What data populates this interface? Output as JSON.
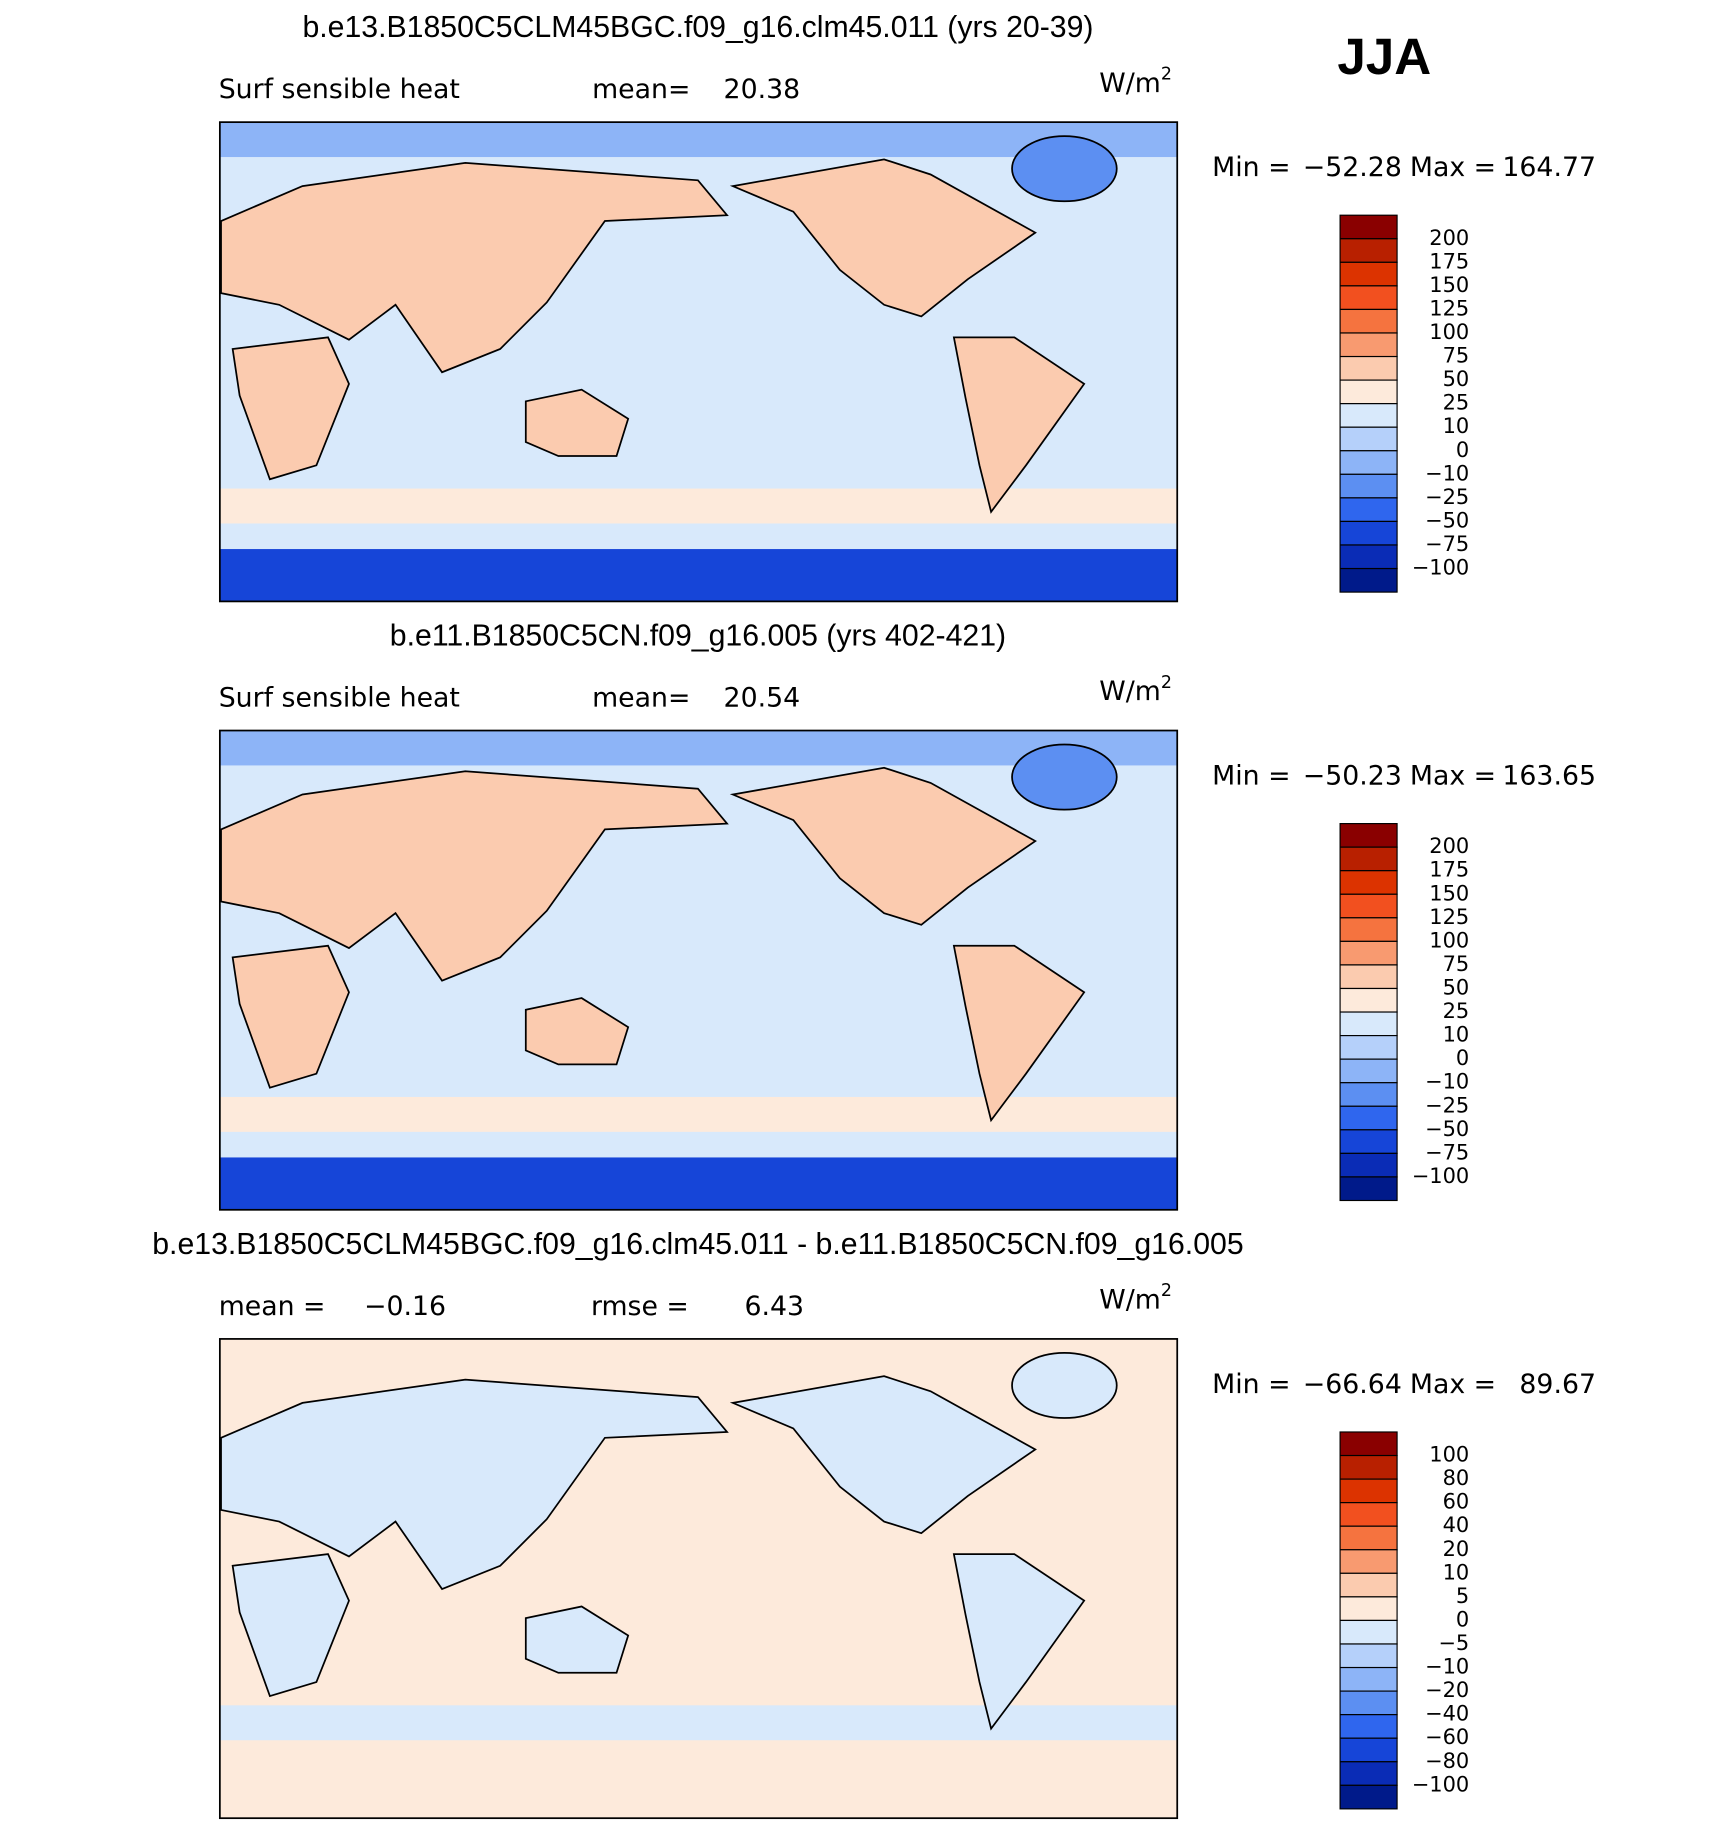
{
  "season": "JJA",
  "panels": [
    {
      "title": "b.e13.B1850C5CLM45BGC.f09_g16.clm45.011 (yrs 20-39)",
      "stats": [
        {
          "label": "Surf  sensible  heat"
        },
        {
          "label": "mean=",
          "value": "20.38"
        }
      ],
      "units": {
        "base": "W/m",
        "exp": "2"
      },
      "min_label": "Min  =",
      "min": "−52.28",
      "max_label": "Max  =",
      "max": "164.77",
      "colorbar": {
        "colors": [
          "#8a0000",
          "#b82000",
          "#dc3300",
          "#f2501f",
          "#f5733f",
          "#f89a70",
          "#fbcbaf",
          "#fdeadb",
          "#d8e9fb",
          "#b5d0fa",
          "#8db4f7",
          "#5c8ff2",
          "#2f66ee",
          "#1645d8",
          "#0a2cb6",
          "#001a8a"
        ],
        "labels": [
          "200",
          "175",
          "150",
          "125",
          "100",
          "75",
          "50",
          "25",
          "10",
          "0",
          "−10",
          "−25",
          "−50",
          "−75",
          "−100"
        ]
      }
    },
    {
      "title": "b.e11.B1850C5CN.f09_g16.005 (yrs 402-421)",
      "stats": [
        {
          "label": "Surf  sensible  heat"
        },
        {
          "label": "mean=",
          "value": "20.54"
        }
      ],
      "units": {
        "base": "W/m",
        "exp": "2"
      },
      "min_label": "Min  =",
      "min": "−50.23",
      "max_label": "Max  =",
      "max": "163.65",
      "colorbar": {
        "colors": [
          "#8a0000",
          "#b82000",
          "#dc3300",
          "#f2501f",
          "#f5733f",
          "#f89a70",
          "#fbcbaf",
          "#fdeadb",
          "#d8e9fb",
          "#b5d0fa",
          "#8db4f7",
          "#5c8ff2",
          "#2f66ee",
          "#1645d8",
          "#0a2cb6",
          "#001a8a"
        ],
        "labels": [
          "200",
          "175",
          "150",
          "125",
          "100",
          "75",
          "50",
          "25",
          "10",
          "0",
          "−10",
          "−25",
          "−50",
          "−75",
          "−100"
        ]
      }
    },
    {
      "title": "b.e13.B1850C5CLM45BGC.f09_g16.clm45.011 - b.e11.B1850C5CN.f09_g16.005",
      "stats": [
        {
          "label": "mean  =",
          "value": "−0.16"
        },
        {
          "label": "rmse  =",
          "value": "6.43"
        }
      ],
      "units": {
        "base": "W/m",
        "exp": "2"
      },
      "min_label": "Min  =",
      "min": "−66.64",
      "max_label": "Max  =",
      "max": "89.67",
      "colorbar": {
        "colors": [
          "#8a0000",
          "#b82000",
          "#dc3300",
          "#f2501f",
          "#f5733f",
          "#f89a70",
          "#fbcbaf",
          "#fdeadb",
          "#d8e9fb",
          "#b5d0fa",
          "#8db4f7",
          "#5c8ff2",
          "#2f66ee",
          "#1645d8",
          "#0a2cb6",
          "#001a8a"
        ],
        "labels": [
          "100",
          "80",
          "60",
          "40",
          "20",
          "10",
          "5",
          "0",
          "−5",
          "−10",
          "−20",
          "−40",
          "−60",
          "−80",
          "−100"
        ]
      }
    }
  ]
}
